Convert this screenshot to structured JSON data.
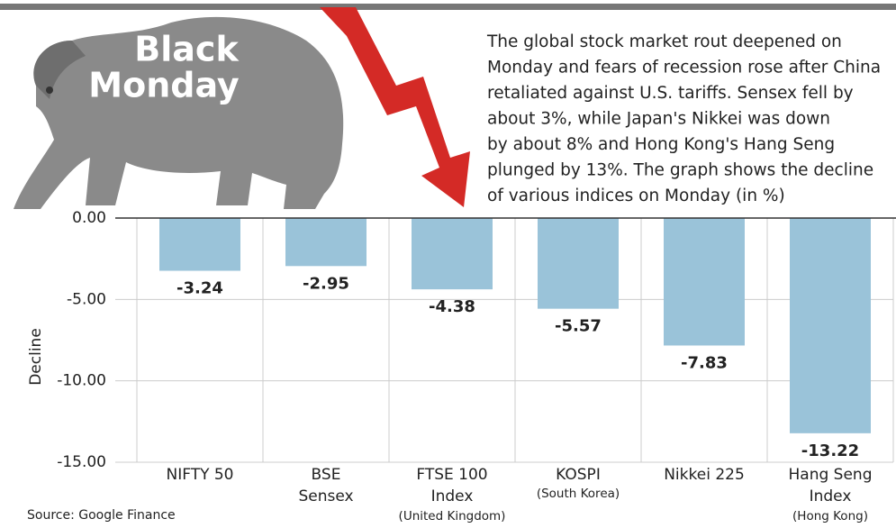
{
  "chart_data": {
    "type": "bar",
    "title": [
      "Black",
      "Monday"
    ],
    "description": [
      "The global stock market rout deepened on",
      "Monday and fears of recession rose after China",
      "retaliated against U.S. tariffs. Sensex fell by",
      "about 3%, while Japan's Nikkei was down",
      "by about 8% and Hong Kong's Hang Seng",
      "plunged by 13%. The graph shows the decline",
      "of various indices on Monday (in %)"
    ],
    "y_label": "Decline",
    "source": "Source: Google Finance",
    "categories": [
      [
        "NIFTY 50"
      ],
      [
        "BSE",
        "Sensex"
      ],
      [
        "FTSE 100",
        "Index"
      ],
      [
        "KOSPI"
      ],
      [
        "Nikkei 225"
      ],
      [
        "Hang Seng",
        "Index"
      ]
    ],
    "category_notes": [
      null,
      null,
      "(United Kingdom)",
      "(South Korea)",
      null,
      "(Hong Kong)"
    ],
    "values": [
      -3.24,
      -2.95,
      -4.38,
      -5.57,
      -7.83,
      -13.22
    ],
    "color": "#9ac3d9",
    "ylim": [
      -15,
      0
    ],
    "yticks": [
      {
        "value": 0,
        "label": "0.00"
      },
      {
        "value": -5,
        "label": "-5.00"
      },
      {
        "value": -10,
        "label": "-10.00"
      },
      {
        "value": -15,
        "label": "-15.00"
      }
    ],
    "grid": true
  }
}
